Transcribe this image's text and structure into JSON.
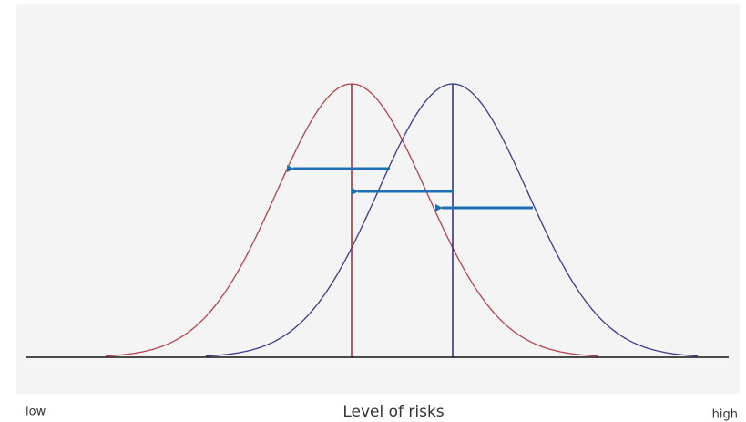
{
  "labels": {
    "low": "low",
    "axis": "Level of risks",
    "high": "high"
  }
}
